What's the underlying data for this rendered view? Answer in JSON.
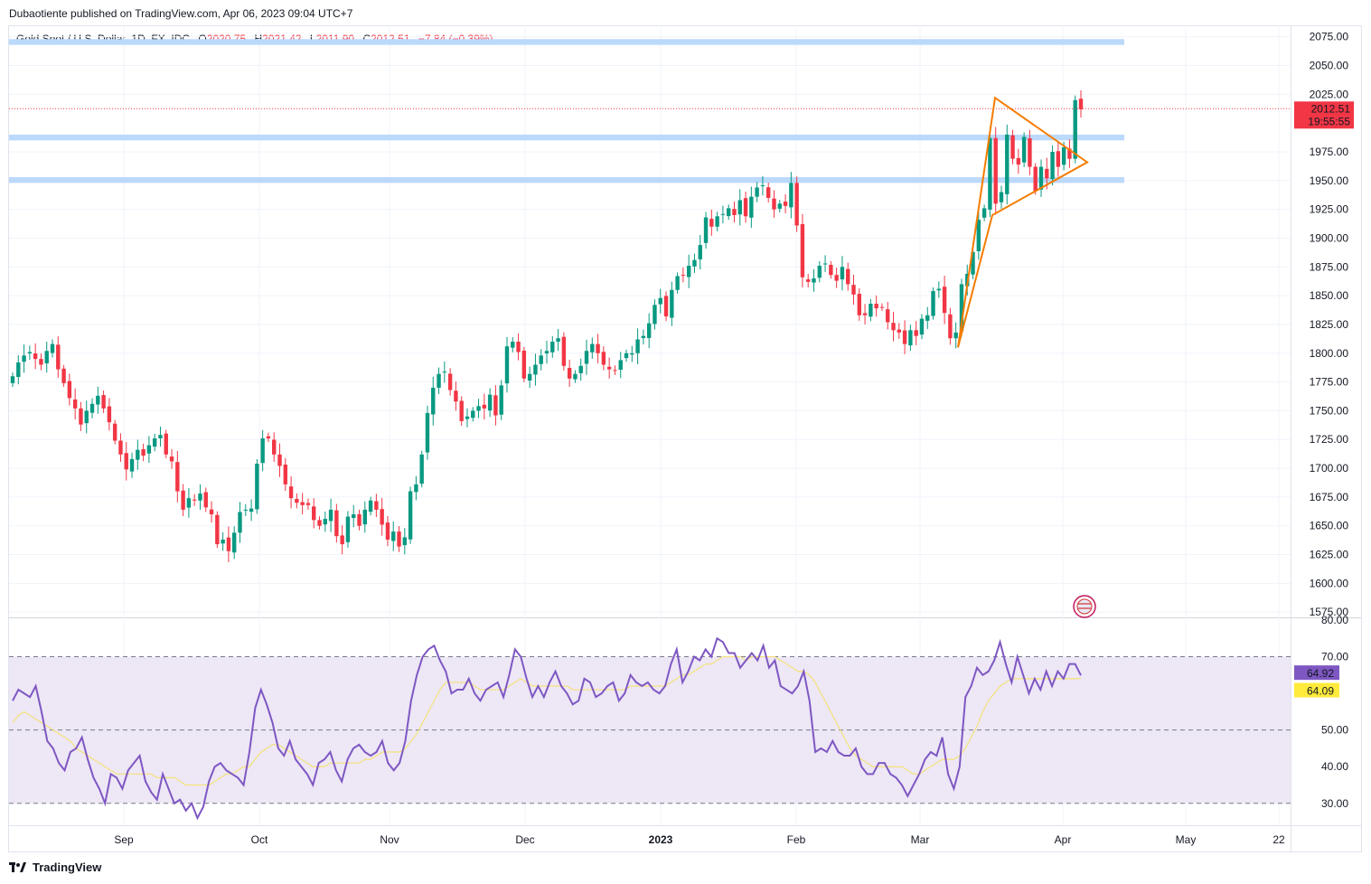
{
  "publisher_line": "Dubaotiente published on TradingView.com, Apr 06, 2023 09:04 UTC+7",
  "legend": {
    "symbol": "Gold Spot / U.S. Dollar, 1D, FX_IDC",
    "o_label": "O",
    "o_value": "2020.75",
    "h_label": "H",
    "h_value": "2021.42",
    "l_label": "L",
    "l_value": "2011.90",
    "c_label": "C",
    "c_value": "2012.51",
    "change": "−7.84 (−0.39%)"
  },
  "brand": "TradingView",
  "colors": {
    "up": "#089981",
    "down": "#f23645",
    "zone": "#bbd9fb",
    "triangle": "#f57c00",
    "rsi": "#7e57c2",
    "rsi_ma": "#f5e27a",
    "rsi_band": "#ede7f6",
    "grid": "#f0f3fa"
  },
  "chart_data": [
    {
      "type": "candlestick",
      "title": "Gold Spot / U.S. Dollar, 1D, FX_IDC",
      "y_axis_ticks": [
        "2075.00",
        "2050.00",
        "2025.00",
        "1975.00",
        "1950.00",
        "1925.00",
        "1900.00",
        "1875.00",
        "1850.00",
        "1825.00",
        "1800.00",
        "1775.00",
        "1750.00",
        "1725.00",
        "1700.00",
        "1675.00",
        "1650.00",
        "1625.00",
        "1600.00",
        "1575.00"
      ],
      "ylim": [
        1572,
        2085
      ],
      "x_axis_ticks": [
        "Sep",
        "Oct",
        "Nov",
        "Dec",
        "2023",
        "Feb",
        "Mar",
        "Apr",
        "May",
        "22"
      ],
      "last_price": "2012.51",
      "countdown": "19:55:55",
      "zones": [
        [
          2068,
          2073
        ],
        [
          1985,
          1990
        ],
        [
          1948,
          1953
        ]
      ],
      "pattern": "symmetrical triangle",
      "close_series": [
        1780,
        1792,
        1798,
        1801,
        1795,
        1790,
        1802,
        1808,
        1786,
        1774,
        1761,
        1752,
        1738,
        1750,
        1756,
        1763,
        1752,
        1740,
        1724,
        1712,
        1699,
        1708,
        1716,
        1711,
        1720,
        1726,
        1729,
        1712,
        1706,
        1680,
        1664,
        1674,
        1672,
        1678,
        1666,
        1660,
        1634,
        1638,
        1628,
        1644,
        1662,
        1664,
        1665,
        1704,
        1726,
        1726,
        1712,
        1702,
        1686,
        1674,
        1670,
        1668,
        1668,
        1655,
        1650,
        1656,
        1664,
        1641,
        1634,
        1658,
        1660,
        1650,
        1664,
        1672,
        1664,
        1651,
        1638,
        1645,
        1632,
        1640,
        1680,
        1686,
        1712,
        1748,
        1770,
        1782,
        1784,
        1768,
        1758,
        1741,
        1745,
        1750,
        1754,
        1752,
        1764,
        1746,
        1772,
        1806,
        1810,
        1801,
        1778,
        1782,
        1790,
        1798,
        1802,
        1810,
        1813,
        1789,
        1778,
        1782,
        1789,
        1802,
        1808,
        1800,
        1790,
        1786,
        1785,
        1794,
        1800,
        1800,
        1812,
        1815,
        1826,
        1842,
        1848,
        1832,
        1855,
        1867,
        1868,
        1876,
        1881,
        1894,
        1918,
        1910,
        1919,
        1921,
        1926,
        1920,
        1933,
        1919,
        1936,
        1944,
        1946,
        1935,
        1925,
        1930,
        1928,
        1948,
        1911,
        1866,
        1862,
        1865,
        1876,
        1878,
        1868,
        1863,
        1875,
        1860,
        1851,
        1833,
        1833,
        1843,
        1839,
        1840,
        1827,
        1820,
        1818,
        1808,
        1820,
        1815,
        1830,
        1833,
        1854,
        1856,
        1835,
        1813,
        1818,
        1860,
        1869,
        1888,
        1916,
        1926,
        1987,
        1930,
        1940,
        1990,
        1969,
        1964,
        1988,
        1962,
        1941,
        1962,
        1952,
        1975,
        1962,
        1979,
        1969,
        2020,
        2012
      ],
      "annotated_points": [
        {
          "date": "Sep 01",
          "close": 1700
        },
        {
          "date": "Sep 28",
          "close": 1624
        },
        {
          "date": "Nov 03",
          "close": 1630
        },
        {
          "date": "Jan 26",
          "close": 1946
        },
        {
          "date": "Feb 28",
          "close": 1808
        },
        {
          "date": "Mar 20",
          "close": 1990
        },
        {
          "date": "Apr 05",
          "close": 2020
        },
        {
          "date": "Apr 06",
          "close": 2012.51
        }
      ]
    },
    {
      "type": "line",
      "title": "RSI",
      "y_axis_ticks": [
        "80.00",
        "70.00",
        "50.00",
        "40.00",
        "30.00"
      ],
      "ylim": [
        26,
        80
      ],
      "bands": [
        30,
        50,
        70
      ],
      "series": [
        {
          "values": [
            58,
            61,
            60,
            59,
            62,
            55,
            47,
            45,
            41,
            39,
            44,
            45,
            48,
            42,
            37,
            34,
            30,
            38,
            37,
            34,
            39,
            41,
            43,
            36,
            33,
            31,
            38,
            34,
            30,
            31,
            28,
            30,
            26,
            29,
            36,
            40,
            41,
            39,
            38,
            37,
            35,
            44,
            56,
            61,
            57,
            52,
            45,
            43,
            47,
            42,
            40,
            38,
            35,
            41,
            42,
            44,
            39,
            36,
            42,
            45,
            46,
            44,
            43,
            44,
            47,
            41,
            39,
            41,
            47,
            58,
            65,
            70,
            72,
            73,
            69,
            66,
            60,
            61,
            61,
            64,
            60,
            58,
            61,
            62,
            63,
            59,
            65,
            72,
            70,
            64,
            59,
            62,
            59,
            63,
            66,
            62,
            60,
            57,
            58,
            64,
            63,
            59,
            60,
            62,
            63,
            58,
            60,
            65,
            63,
            62,
            63,
            61,
            60,
            62,
            68,
            72,
            63,
            66,
            70,
            69,
            72,
            70,
            75,
            74,
            71,
            71,
            67,
            69,
            71,
            69,
            73,
            67,
            69,
            62,
            61,
            60,
            62,
            66,
            58,
            44,
            45,
            44,
            47,
            44,
            43,
            43,
            45,
            40,
            38,
            38,
            41,
            41,
            38,
            37,
            35,
            32,
            35,
            38,
            42,
            44,
            43,
            48,
            38,
            34,
            40,
            59,
            62,
            67,
            65,
            66,
            69,
            74,
            68,
            63,
            70,
            65,
            60,
            64,
            61,
            66,
            62,
            66,
            64,
            68,
            68,
            64.92
          ]
        },
        {
          "values": [
            52,
            54,
            55,
            54,
            53,
            52,
            51,
            50,
            49,
            48,
            47,
            45,
            44,
            43,
            42,
            41,
            40,
            39,
            38,
            38,
            38,
            38,
            38,
            38,
            38,
            37,
            37,
            37,
            37,
            36,
            35,
            35,
            35,
            35,
            35,
            36,
            37,
            38,
            38,
            39,
            40,
            40,
            42,
            44,
            45,
            46,
            46,
            45,
            44,
            43,
            42,
            41,
            40,
            40,
            40,
            41,
            41,
            41,
            41,
            41,
            41,
            42,
            42,
            43,
            44,
            44,
            44,
            44,
            45,
            47,
            49,
            52,
            55,
            58,
            61,
            63,
            63,
            63,
            63,
            63,
            62,
            61,
            61,
            61,
            61,
            61,
            62,
            63,
            64,
            63,
            62,
            62,
            62,
            62,
            62,
            62,
            62,
            61,
            61,
            61,
            61,
            61,
            61,
            61,
            61,
            61,
            61,
            62,
            62,
            62,
            62,
            62,
            62,
            62,
            63,
            64,
            65,
            65,
            66,
            67,
            68,
            68,
            69,
            70,
            70,
            70,
            70,
            69,
            70,
            70,
            70,
            70,
            70,
            69,
            68,
            67,
            66,
            66,
            65,
            63,
            60,
            57,
            54,
            51,
            48,
            45,
            43,
            42,
            41,
            40,
            40,
            40,
            40,
            40,
            40,
            39,
            38,
            38,
            39,
            40,
            41,
            42,
            42,
            42,
            43,
            45,
            48,
            51,
            55,
            58,
            60,
            62,
            63,
            64,
            64,
            64,
            64,
            64,
            64,
            64,
            64,
            64,
            64,
            64,
            64,
            64.09
          ]
        }
      ],
      "last_values": [
        "64.92",
        "64.09"
      ]
    }
  ]
}
